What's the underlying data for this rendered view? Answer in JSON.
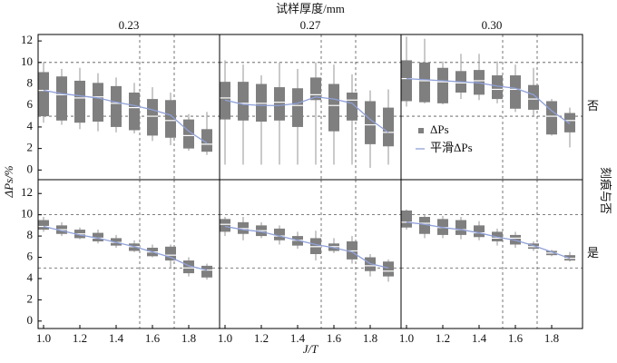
{
  "figure": {
    "title": "试样厚度/mm",
    "ylabel": "ΔPs/%",
    "xlabel": "J/T",
    "row_title": "刻痕与否"
  },
  "chart_data": [
    {
      "type": "box",
      "title": "0.23",
      "xlim": [
        0.97,
        1.97
      ],
      "ylim": [
        -0.9,
        12.6
      ],
      "yticks": [
        0,
        2,
        4,
        6,
        8,
        10,
        12
      ],
      "hlines": [
        5,
        10
      ],
      "vlines": [
        1.53,
        1.72
      ],
      "x": [
        1.0,
        1.1,
        1.2,
        1.3,
        1.4,
        1.5,
        1.6,
        1.7,
        1.8,
        1.9
      ],
      "series": [
        {
          "color": "#7f7f7f",
          "whislo": [
            4.4,
            4.2,
            3.8,
            3.6,
            3.5,
            3.4,
            2.7,
            2.3,
            1.8,
            1.4
          ],
          "q1": [
            5.0,
            4.6,
            4.4,
            4.5,
            4.0,
            3.7,
            3.2,
            3.0,
            2.0,
            1.7
          ],
          "med": [
            7.4,
            7.0,
            6.7,
            6.8,
            6.2,
            5.8,
            5.0,
            4.6,
            3.2,
            2.4
          ],
          "q3": [
            9.1,
            8.7,
            8.3,
            8.1,
            7.8,
            7.2,
            6.6,
            6.5,
            4.7,
            3.8
          ],
          "whishi": [
            10.0,
            9.4,
            9.5,
            9.0,
            8.6,
            8.1,
            7.7,
            7.2,
            5.2,
            5.4
          ]
        },
        {
          "color": "#8fa0d8",
          "values": [
            7.4,
            7.1,
            6.9,
            6.7,
            6.3,
            6.0,
            5.6,
            5.1,
            3.6,
            2.5
          ]
        }
      ]
    },
    {
      "type": "box",
      "title": "0.27",
      "xlim": [
        0.97,
        1.97
      ],
      "ylim": [
        -0.9,
        12.6
      ],
      "hlines": [
        5,
        10
      ],
      "vlines": [
        1.53,
        1.72
      ],
      "x": [
        1.0,
        1.1,
        1.2,
        1.3,
        1.4,
        1.5,
        1.6,
        1.7,
        1.8,
        1.9
      ],
      "series": [
        {
          "color": "#7f7f7f",
          "whislo": [
            0.5,
            0.5,
            0.5,
            0.5,
            0.5,
            0.5,
            0.5,
            0.5,
            0.2,
            0.5
          ],
          "q1": [
            4.7,
            4.6,
            4.5,
            4.6,
            4.0,
            6.5,
            3.6,
            4.6,
            2.4,
            2.2
          ],
          "med": [
            6.7,
            6.2,
            6.2,
            6.3,
            6.0,
            7.0,
            6.0,
            6.5,
            4.2,
            3.5
          ],
          "q3": [
            8.2,
            8.2,
            8.0,
            7.7,
            7.6,
            8.6,
            8.0,
            7.2,
            6.4,
            5.8
          ],
          "whishi": [
            10.2,
            9.8,
            8.8,
            10.0,
            9.4,
            10.0,
            9.8,
            8.9,
            7.4,
            7.5
          ]
        },
        {
          "color": "#8fa0d8",
          "values": [
            6.5,
            6.1,
            6.0,
            6.0,
            6.2,
            6.8,
            6.6,
            6.2,
            4.7,
            3.5
          ]
        }
      ]
    },
    {
      "type": "box",
      "title": "0.30",
      "row_label": "否",
      "xlim": [
        0.97,
        1.97
      ],
      "ylim": [
        -0.9,
        12.6
      ],
      "hlines": [
        5,
        10
      ],
      "vlines": [
        1.53,
        1.72
      ],
      "legend": "center-left",
      "x": [
        1.0,
        1.1,
        1.2,
        1.3,
        1.4,
        1.5,
        1.6,
        1.7,
        1.8,
        1.9
      ],
      "series": [
        {
          "name": "ΔPs",
          "color": "#7f7f7f",
          "whislo": [
            5.9,
            6.2,
            6.1,
            6.6,
            6.5,
            6.2,
            5.4,
            5.0,
            3.2,
            2.1
          ],
          "q1": [
            6.4,
            6.3,
            6.2,
            7.2,
            7.0,
            6.6,
            5.7,
            5.6,
            3.3,
            3.5
          ],
          "med": [
            8.5,
            8.3,
            8.2,
            8.1,
            8.3,
            7.5,
            7.5,
            6.6,
            5.0,
            4.6
          ],
          "q3": [
            10.2,
            10.0,
            9.5,
            9.2,
            9.3,
            8.8,
            8.8,
            7.9,
            6.4,
            5.3
          ],
          "whishi": [
            12.4,
            12.2,
            10.1,
            10.8,
            10.8,
            10.1,
            9.8,
            9.5,
            6.6,
            5.8
          ]
        },
        {
          "name": "平滑ΔPs",
          "color": "#8fa0d8",
          "values": [
            8.5,
            8.4,
            8.3,
            8.2,
            8.1,
            7.8,
            7.6,
            7.0,
            5.5,
            4.3
          ]
        }
      ]
    },
    {
      "type": "box",
      "xlim": [
        0.97,
        1.97
      ],
      "ylim": [
        -0.7,
        13.3
      ],
      "yticks": [
        0,
        2,
        4,
        6,
        8,
        10,
        12
      ],
      "hlines": [
        5,
        10
      ],
      "vlines": [
        1.53,
        1.72
      ],
      "xticks": [
        {
          "value": 1.0,
          "label": "1.0"
        },
        {
          "value": 1.2,
          "label": "1.2"
        },
        {
          "value": 1.4,
          "label": "1.4"
        },
        {
          "value": 1.6,
          "label": "1.6"
        },
        {
          "value": 1.8,
          "label": "1.8"
        }
      ],
      "x": [
        1.0,
        1.1,
        1.2,
        1.3,
        1.4,
        1.5,
        1.6,
        1.7,
        1.8,
        1.9
      ],
      "series": [
        {
          "color": "#7f7f7f",
          "whislo": [
            8.4,
            8.0,
            7.7,
            7.3,
            6.9,
            6.5,
            6.0,
            5.0,
            4.2,
            3.9
          ],
          "q1": [
            8.6,
            8.2,
            7.8,
            7.5,
            7.1,
            6.6,
            6.1,
            5.7,
            4.5,
            4.1
          ],
          "med": [
            8.9,
            8.6,
            8.2,
            7.8,
            7.4,
            7.0,
            6.5,
            6.2,
            5.0,
            4.8
          ],
          "q3": [
            9.5,
            9.0,
            8.6,
            8.3,
            7.8,
            7.3,
            6.9,
            7.0,
            5.7,
            5.2
          ],
          "whishi": [
            9.8,
            9.3,
            8.8,
            8.6,
            8.1,
            7.6,
            7.2,
            7.2,
            6.0,
            5.4
          ]
        },
        {
          "color": "#8fa0d8",
          "values": [
            8.9,
            8.5,
            8.1,
            7.8,
            7.4,
            7.0,
            6.5,
            6.0,
            5.2,
            4.8
          ]
        }
      ]
    },
    {
      "type": "box",
      "xlim": [
        0.97,
        1.97
      ],
      "ylim": [
        -0.7,
        13.3
      ],
      "hlines": [
        5,
        10
      ],
      "vlines": [
        1.53,
        1.72
      ],
      "xticks": [
        {
          "value": 1.0,
          "label": "1.0"
        },
        {
          "value": 1.2,
          "label": "1.2"
        },
        {
          "value": 1.4,
          "label": "1.4"
        },
        {
          "value": 1.6,
          "label": "1.6"
        },
        {
          "value": 1.8,
          "label": "1.8"
        }
      ],
      "x": [
        1.0,
        1.1,
        1.2,
        1.3,
        1.4,
        1.5,
        1.6,
        1.7,
        1.8,
        1.9
      ],
      "series": [
        {
          "color": "#7f7f7f",
          "whislo": [
            8.0,
            7.6,
            7.8,
            7.2,
            6.8,
            5.7,
            6.4,
            5.4,
            4.2,
            3.7
          ],
          "q1": [
            8.4,
            8.2,
            8.0,
            7.6,
            7.1,
            6.3,
            6.6,
            5.8,
            4.7,
            4.2
          ],
          "med": [
            9.1,
            8.7,
            8.5,
            8.0,
            7.6,
            7.0,
            7.0,
            6.6,
            5.2,
            4.7
          ],
          "q3": [
            9.6,
            9.3,
            9.0,
            8.7,
            8.0,
            7.8,
            7.3,
            7.5,
            6.0,
            5.6
          ],
          "whishi": [
            9.8,
            9.8,
            9.3,
            9.0,
            8.4,
            8.5,
            7.8,
            8.0,
            6.3,
            5.8
          ]
        },
        {
          "color": "#8fa0d8",
          "values": [
            8.9,
            8.6,
            8.4,
            8.0,
            7.6,
            7.2,
            6.9,
            6.5,
            5.4,
            5.0
          ]
        }
      ]
    },
    {
      "type": "box",
      "row_label": "是",
      "xlim": [
        0.97,
        1.97
      ],
      "ylim": [
        -0.7,
        13.3
      ],
      "hlines": [
        5,
        10
      ],
      "vlines": [
        1.53,
        1.72
      ],
      "xticks": [
        {
          "value": 1.0,
          "label": "1.0"
        },
        {
          "value": 1.2,
          "label": "1.2"
        },
        {
          "value": 1.4,
          "label": "1.4"
        },
        {
          "value": 1.6,
          "label": "1.6"
        },
        {
          "value": 1.8,
          "label": "1.8"
        }
      ],
      "x": [
        1.0,
        1.1,
        1.2,
        1.3,
        1.4,
        1.5,
        1.6,
        1.7,
        1.8,
        1.9
      ],
      "series": [
        {
          "color": "#7f7f7f",
          "whislo": [
            8.6,
            7.8,
            7.8,
            7.7,
            7.6,
            7.1,
            6.9,
            6.6,
            6.1,
            5.6
          ],
          "q1": [
            8.8,
            8.2,
            8.1,
            8.1,
            7.9,
            7.5,
            7.2,
            6.8,
            6.2,
            5.7
          ],
          "med": [
            9.3,
            9.2,
            8.8,
            8.6,
            8.3,
            7.8,
            7.8,
            7.0,
            6.4,
            5.9
          ],
          "q3": [
            10.4,
            9.8,
            9.6,
            9.5,
            9.0,
            8.4,
            8.1,
            7.3,
            6.6,
            6.2
          ],
          "whishi": [
            10.5,
            10.0,
            9.9,
            9.8,
            9.4,
            8.7,
            8.4,
            7.5,
            6.7,
            6.5
          ]
        },
        {
          "color": "#8fa0d8",
          "values": [
            9.3,
            9.1,
            8.8,
            8.6,
            8.3,
            7.9,
            7.6,
            7.1,
            6.5,
            5.9
          ]
        }
      ]
    }
  ]
}
